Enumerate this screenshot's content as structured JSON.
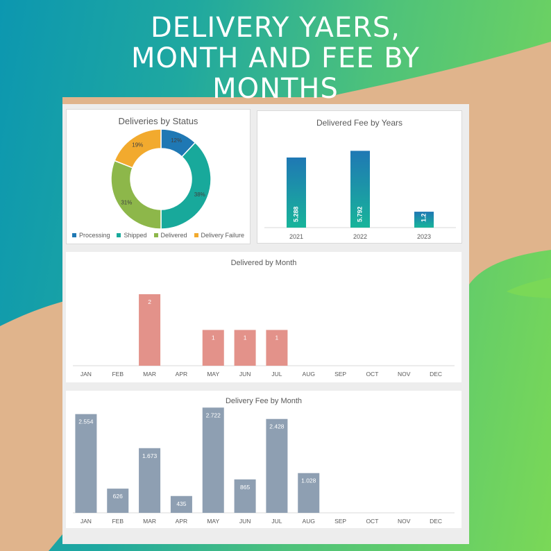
{
  "header": {
    "title_lines": [
      "DELIVERY YAERS,",
      "MONTH AND FEE BY",
      "MONTHS"
    ]
  },
  "theme": {
    "blob_color": "#e0b48c",
    "donut_colors": [
      "#1f78b4",
      "#18a99b",
      "#8db74a",
      "#f2aa2e"
    ],
    "year_bar_top": "#1f78b4",
    "year_bar_bottom": "#18b49a",
    "month_bar_color": "#e3928a",
    "fee_bar_color": "#8e9fb2"
  },
  "chart_data": [
    {
      "type": "pie",
      "title": "Deliveries by Status",
      "categories": [
        "Processing",
        "Shipped",
        "Delivered",
        "Delivery Failure"
      ],
      "values": [
        12,
        38,
        31,
        19
      ],
      "labels": [
        "12%",
        "38%",
        "31%",
        "19%"
      ],
      "donut": true,
      "legend": "bottom"
    },
    {
      "type": "bar",
      "title": "Delivered Fee by Years",
      "categories": [
        "2021",
        "2022",
        "2023"
      ],
      "values": [
        5.288,
        5.792,
        1.2
      ],
      "labels": [
        "5.288",
        "5.792",
        "1.2"
      ],
      "ylim": [
        0,
        6.7
      ]
    },
    {
      "type": "bar",
      "title": "Delivered by Month",
      "categories": [
        "JAN",
        "FEB",
        "MAR",
        "APR",
        "MAY",
        "JUN",
        "JUL",
        "AUG",
        "SEP",
        "OCT",
        "NOV",
        "DEC"
      ],
      "values": [
        0,
        0,
        2,
        0,
        1,
        1,
        1,
        0,
        0,
        0,
        0,
        0
      ],
      "labels": [
        "",
        "",
        "2",
        "",
        "1",
        "1",
        "1",
        "",
        "",
        "",
        "",
        ""
      ],
      "ylim": [
        0,
        2.6
      ]
    },
    {
      "type": "bar",
      "title": "Delivery Fee by Month",
      "categories": [
        "JAN",
        "FEB",
        "MAR",
        "APR",
        "MAY",
        "JUN",
        "JUL",
        "AUG",
        "SEP",
        "OCT",
        "NOV",
        "DEC"
      ],
      "values": [
        2.554,
        0.626,
        1.673,
        0.435,
        2.722,
        0.865,
        2.428,
        1.028,
        0,
        0,
        0,
        0
      ],
      "labels": [
        "2.554",
        "626",
        "1.673",
        "435",
        "2.722",
        "865",
        "2.428",
        "1.028",
        "",
        "",
        "",
        ""
      ],
      "ylim": [
        0,
        2.8
      ]
    }
  ]
}
